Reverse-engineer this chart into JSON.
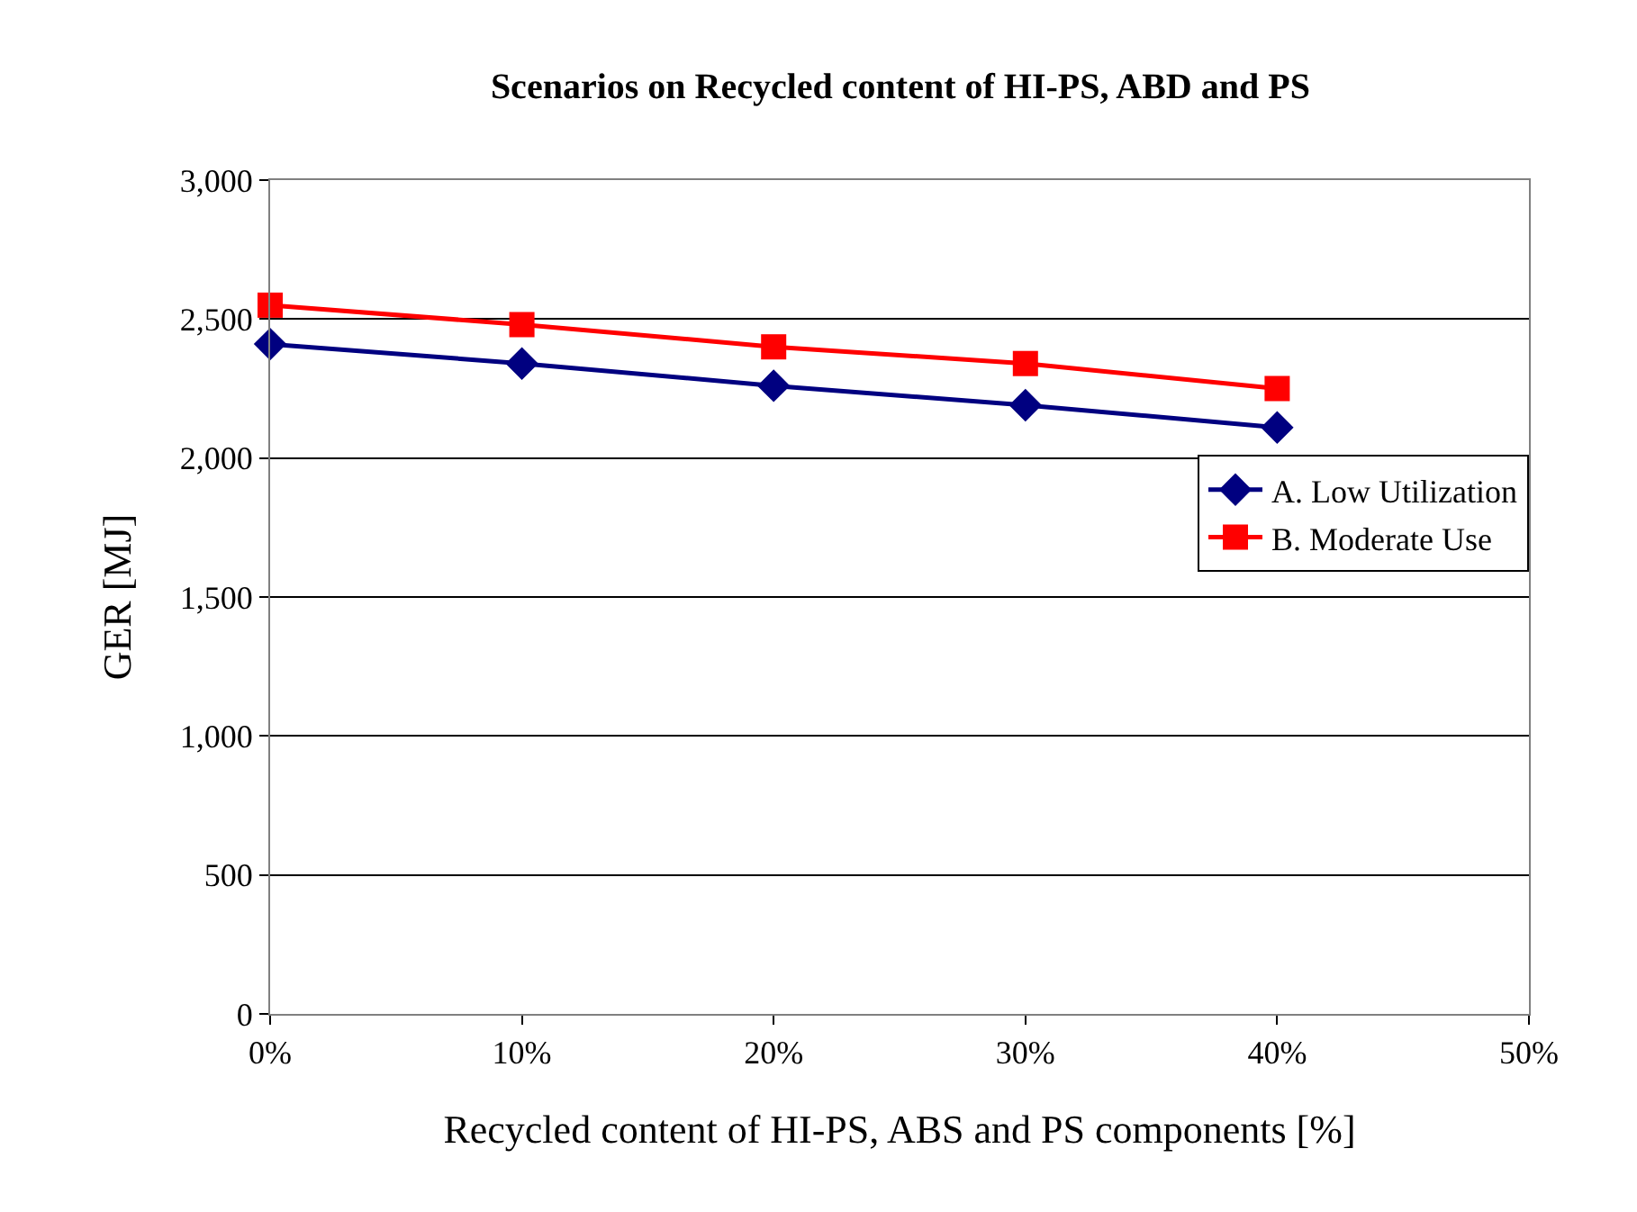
{
  "chart_data": {
    "type": "line",
    "title": "Scenarios on Recycled content of HI-PS, ABD and PS",
    "xlabel": "Recycled content of HI-PS, ABS and PS components [%]",
    "ylabel": "GER [MJ]",
    "x": [
      0,
      10,
      20,
      30,
      40
    ],
    "series": [
      {
        "name": "A. Low Utilization",
        "color": "#000080",
        "marker": "diamond",
        "values": [
          2410,
          2340,
          2260,
          2190,
          2110
        ]
      },
      {
        "name": "B. Moderate Use",
        "color": "#ff0000",
        "marker": "square",
        "values": [
          2550,
          2480,
          2400,
          2340,
          2250
        ]
      }
    ],
    "xlim": [
      0,
      50
    ],
    "xticks": [
      {
        "value": 0,
        "label": "0%"
      },
      {
        "value": 10,
        "label": "10%"
      },
      {
        "value": 20,
        "label": "20%"
      },
      {
        "value": 30,
        "label": "30%"
      },
      {
        "value": 40,
        "label": "40%"
      },
      {
        "value": 50,
        "label": "50%"
      }
    ],
    "ylim": [
      0,
      3000
    ],
    "yticks": [
      0,
      500,
      {
        "value": 1000,
        "label": "1,000"
      },
      {
        "value": 1500,
        "label": "1,500"
      },
      {
        "value": 2000,
        "label": "2,000"
      },
      {
        "value": 2500,
        "label": "2,500"
      },
      {
        "value": 3000,
        "label": "3,000"
      }
    ],
    "grid": "y",
    "legend": "right",
    "line_style": "solid"
  }
}
